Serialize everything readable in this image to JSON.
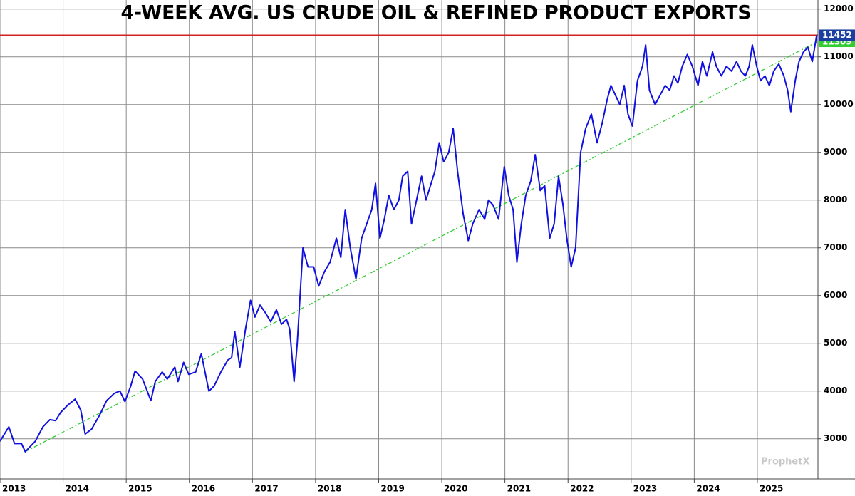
{
  "chart_data": {
    "type": "line",
    "title": "4-WEEK AVG. US CRUDE OIL & REFINED PRODUCT EXPORTS",
    "watermark": "ProphetX",
    "xlim": [
      2013,
      2025.96
    ],
    "xticks": [
      2013,
      2014,
      2015,
      2016,
      2017,
      2018,
      2019,
      2020,
      2021,
      2022,
      2023,
      2024,
      2025
    ],
    "ylim": [
      2160,
      12190
    ],
    "yticks": [
      3000,
      4000,
      5000,
      6000,
      7000,
      8000,
      9000,
      10000,
      11000,
      12000
    ],
    "grid": true,
    "series": [
      {
        "color": "#1010e0",
        "x": [
          2013.0,
          2013.14,
          2013.23,
          2013.34,
          2013.4,
          2013.56,
          2013.68,
          2013.79,
          2013.88,
          2013.96,
          2014.07,
          2014.19,
          2014.28,
          2014.35,
          2014.45,
          2014.58,
          2014.69,
          2014.81,
          2014.9,
          2014.98,
          2015.07,
          2015.14,
          2015.26,
          2015.39,
          2015.46,
          2015.57,
          2015.65,
          2015.77,
          2015.82,
          2015.91,
          2015.99,
          2016.1,
          2016.19,
          2016.31,
          2016.39,
          2016.5,
          2016.61,
          2016.67,
          2016.72,
          2016.8,
          2016.89,
          2016.97,
          2017.04,
          2017.12,
          2017.2,
          2017.29,
          2017.38,
          2017.46,
          2017.54,
          2017.59,
          2017.66,
          2017.71,
          2017.8,
          2017.88,
          2017.97,
          2018.05,
          2018.14,
          2018.23,
          2018.33,
          2018.4,
          2018.47,
          2018.55,
          2018.64,
          2018.73,
          2018.81,
          2018.89,
          2018.95,
          2019.02,
          2019.09,
          2019.16,
          2019.24,
          2019.32,
          2019.38,
          2019.46,
          2019.52,
          2019.6,
          2019.68,
          2019.75,
          2019.82,
          2019.89,
          2019.96,
          2020.03,
          2020.11,
          2020.18,
          2020.25,
          2020.34,
          2020.42,
          2020.49,
          2020.59,
          2020.68,
          2020.74,
          2020.81,
          2020.9,
          2020.99,
          2021.06,
          2021.13,
          2021.19,
          2021.26,
          2021.33,
          2021.41,
          2021.48,
          2021.56,
          2021.63,
          2021.71,
          2021.78,
          2021.85,
          2021.92,
          2021.98,
          2022.05,
          2022.12,
          2022.2,
          2022.28,
          2022.37,
          2022.46,
          2022.54,
          2022.62,
          2022.68,
          2022.75,
          2022.82,
          2022.89,
          2022.95,
          2023.02,
          2023.1,
          2023.18,
          2023.23,
          2023.29,
          2023.38,
          2023.46,
          2023.54,
          2023.61,
          2023.68,
          2023.74,
          2023.81,
          2023.89,
          2023.97,
          2024.06,
          2024.13,
          2024.2,
          2024.29,
          2024.35,
          2024.43,
          2024.51,
          2024.59,
          2024.67,
          2024.74,
          2024.81,
          2024.87,
          2024.92,
          2024.99,
          2025.05,
          2025.12,
          2025.19,
          2025.26,
          2025.34,
          2025.42,
          2025.48,
          2025.53,
          2025.6,
          2025.66,
          2025.73,
          2025.8,
          2025.87,
          2025.94
        ],
        "values": [
          2950,
          3250,
          2900,
          2900,
          2730,
          2950,
          3250,
          3400,
          3380,
          3550,
          3700,
          3830,
          3600,
          3100,
          3200,
          3500,
          3800,
          3950,
          4000,
          3780,
          4100,
          4420,
          4250,
          3800,
          4200,
          4400,
          4250,
          4500,
          4200,
          4600,
          4350,
          4400,
          4780,
          4000,
          4100,
          4400,
          4650,
          4700,
          5250,
          4500,
          5300,
          5900,
          5550,
          5800,
          5650,
          5450,
          5700,
          5400,
          5500,
          5300,
          4200,
          5000,
          7000,
          6600,
          6600,
          6200,
          6500,
          6700,
          7200,
          6800,
          7800,
          7000,
          6350,
          7200,
          7500,
          7800,
          8350,
          7200,
          7600,
          8100,
          7800,
          8000,
          8500,
          8600,
          7500,
          8000,
          8500,
          8000,
          8300,
          8600,
          9200,
          8800,
          9000,
          9500,
          8600,
          7700,
          7150,
          7500,
          7800,
          7600,
          8000,
          7900,
          7600,
          8700,
          8100,
          7800,
          6700,
          7500,
          8100,
          8400,
          8950,
          8200,
          8300,
          7200,
          7500,
          8500,
          7900,
          7200,
          6600,
          7000,
          9000,
          9500,
          9800,
          9200,
          9600,
          10100,
          10400,
          10200,
          10000,
          10400,
          9800,
          9550,
          10500,
          10800,
          11250,
          10300,
          10000,
          10200,
          10400,
          10300,
          10600,
          10450,
          10800,
          11050,
          10800,
          10400,
          10900,
          10600,
          11100,
          10800,
          10600,
          10800,
          10700,
          10900,
          10700,
          10600,
          10800,
          11250,
          10800,
          10500,
          10600,
          10400,
          10700,
          10850,
          10600,
          10300,
          9850,
          10500,
          10900,
          11100,
          11200,
          10900,
          11452
        ]
      }
    ],
    "trendline": {
      "color": "#33cc33",
      "x": [
        2013.4,
        2025.94
      ],
      "values": [
        2730,
        11309
      ]
    },
    "hline": {
      "color": "#d42020",
      "value": 11452
    }
  }
}
